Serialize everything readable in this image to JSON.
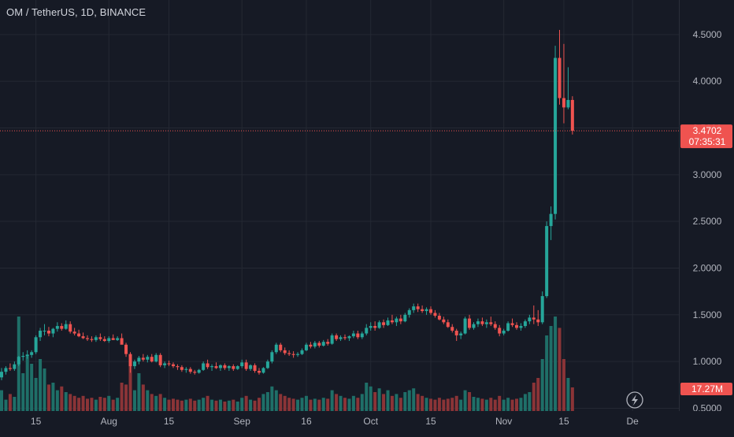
{
  "title": "OM / TetherUS, 1D, BINANCE",
  "chart_data": {
    "type": "candlestick",
    "symbol": "OM / TetherUS",
    "interval": "1D",
    "exchange": "BINANCE",
    "y_ticks": [
      "4.5000",
      "4.0000",
      "3.5000",
      "3.0000",
      "2.5000",
      "2.0000",
      "1.5000",
      "1.0000",
      "0.5000"
    ],
    "y_tick_values": [
      4.5,
      4.0,
      3.5,
      3.0,
      2.5,
      2.0,
      1.5,
      1.0,
      0.5
    ],
    "ylim": [
      0.47,
      4.87
    ],
    "x_ticks": [
      {
        "label": "15",
        "day": 8
      },
      {
        "label": "Aug",
        "day": 25
      },
      {
        "label": "15",
        "day": 39
      },
      {
        "label": "Sep",
        "day": 56
      },
      {
        "label": "16",
        "day": 71
      },
      {
        "label": "Oct",
        "day": 86
      },
      {
        "label": "15",
        "day": 100
      },
      {
        "label": "Nov",
        "day": 117
      },
      {
        "label": "15",
        "day": 131
      },
      {
        "label": "De",
        "day": 147
      }
    ],
    "last_price": "3.4702",
    "last_price_value": 3.4702,
    "countdown": "07:35:31",
    "volume_label": "17.27M",
    "colors": {
      "background": "#161a25",
      "grid": "#242833",
      "up": "#26a69a",
      "down": "#ef5350",
      "text": "#d1d4dc",
      "axis_text": "#b2b5be",
      "volume_up": "#1f6f68",
      "volume_down": "#8b3437",
      "price_line": "#ef5350"
    },
    "candles": [
      [
        0.83,
        0.93,
        0.8,
        0.89
      ],
      [
        0.89,
        0.95,
        0.86,
        0.93
      ],
      [
        0.93,
        0.98,
        0.9,
        0.92
      ],
      [
        0.92,
        1.0,
        0.9,
        0.97
      ],
      [
        0.97,
        1.06,
        0.95,
        1.05
      ],
      [
        1.05,
        1.1,
        1.01,
        1.06
      ],
      [
        1.06,
        1.12,
        1.03,
        1.07
      ],
      [
        1.07,
        1.12,
        1.04,
        1.1
      ],
      [
        1.1,
        1.28,
        1.08,
        1.26
      ],
      [
        1.26,
        1.36,
        1.22,
        1.33
      ],
      [
        1.33,
        1.4,
        1.28,
        1.33
      ],
      [
        1.33,
        1.37,
        1.27,
        1.3
      ],
      [
        1.3,
        1.36,
        1.26,
        1.35
      ],
      [
        1.35,
        1.42,
        1.32,
        1.38
      ],
      [
        1.38,
        1.41,
        1.33,
        1.35
      ],
      [
        1.35,
        1.44,
        1.34,
        1.4
      ],
      [
        1.4,
        1.43,
        1.3,
        1.32
      ],
      [
        1.32,
        1.36,
        1.28,
        1.3
      ],
      [
        1.3,
        1.34,
        1.26,
        1.27
      ],
      [
        1.27,
        1.31,
        1.24,
        1.25
      ],
      [
        1.25,
        1.28,
        1.22,
        1.24
      ],
      [
        1.24,
        1.27,
        1.21,
        1.23
      ],
      [
        1.23,
        1.28,
        1.21,
        1.26
      ],
      [
        1.26,
        1.3,
        1.22,
        1.24
      ],
      [
        1.24,
        1.27,
        1.21,
        1.22
      ],
      [
        1.22,
        1.27,
        1.2,
        1.25
      ],
      [
        1.25,
        1.29,
        1.23,
        1.23
      ],
      [
        1.23,
        1.27,
        1.22,
        1.25
      ],
      [
        1.25,
        1.3,
        1.22,
        1.18
      ],
      [
        1.18,
        1.2,
        1.05,
        1.08
      ],
      [
        1.08,
        1.1,
        0.88,
        0.95
      ],
      [
        0.95,
        1.02,
        0.92,
        1.0
      ],
      [
        1.0,
        1.06,
        0.97,
        1.04
      ],
      [
        1.04,
        1.08,
        1.0,
        1.02
      ],
      [
        1.02,
        1.07,
        0.99,
        1.05
      ],
      [
        1.05,
        1.08,
        0.99,
        1.0
      ],
      [
        1.0,
        1.09,
        0.99,
        1.07
      ],
      [
        1.07,
        1.09,
        0.94,
        0.96
      ],
      [
        0.96,
        1.0,
        0.93,
        0.98
      ],
      [
        0.98,
        1.01,
        0.95,
        0.97
      ],
      [
        0.97,
        0.99,
        0.93,
        0.95
      ],
      [
        0.95,
        0.97,
        0.91,
        0.94
      ],
      [
        0.94,
        0.96,
        0.89,
        0.91
      ],
      [
        0.91,
        0.94,
        0.88,
        0.92
      ],
      [
        0.92,
        0.94,
        0.87,
        0.89
      ],
      [
        0.89,
        0.91,
        0.86,
        0.88
      ],
      [
        0.88,
        0.92,
        0.87,
        0.91
      ],
      [
        0.91,
        1.0,
        0.9,
        0.98
      ],
      [
        0.98,
        1.02,
        0.92,
        0.94
      ],
      [
        0.94,
        0.97,
        0.9,
        0.95
      ],
      [
        0.95,
        0.99,
        0.92,
        0.93
      ],
      [
        0.93,
        0.97,
        0.9,
        0.96
      ],
      [
        0.96,
        0.98,
        0.91,
        0.93
      ],
      [
        0.93,
        0.96,
        0.9,
        0.95
      ],
      [
        0.95,
        0.97,
        0.9,
        0.92
      ],
      [
        0.92,
        0.96,
        0.91,
        0.95
      ],
      [
        0.95,
        1.02,
        0.93,
        0.99
      ],
      [
        0.99,
        1.02,
        0.9,
        0.92
      ],
      [
        0.92,
        0.97,
        0.9,
        0.96
      ],
      [
        0.96,
        0.98,
        0.88,
        0.9
      ],
      [
        0.9,
        0.93,
        0.86,
        0.88
      ],
      [
        0.88,
        0.94,
        0.87,
        0.93
      ],
      [
        0.93,
        1.02,
        0.92,
        1.0
      ],
      [
        1.0,
        1.12,
        0.98,
        1.1
      ],
      [
        1.1,
        1.2,
        1.08,
        1.18
      ],
      [
        1.18,
        1.2,
        1.1,
        1.12
      ],
      [
        1.12,
        1.15,
        1.07,
        1.09
      ],
      [
        1.09,
        1.12,
        1.06,
        1.08
      ],
      [
        1.08,
        1.11,
        1.04,
        1.07
      ],
      [
        1.07,
        1.1,
        1.05,
        1.08
      ],
      [
        1.08,
        1.14,
        1.07,
        1.12
      ],
      [
        1.12,
        1.2,
        1.11,
        1.18
      ],
      [
        1.18,
        1.21,
        1.14,
        1.16
      ],
      [
        1.16,
        1.22,
        1.14,
        1.2
      ],
      [
        1.2,
        1.22,
        1.15,
        1.17
      ],
      [
        1.17,
        1.23,
        1.16,
        1.21
      ],
      [
        1.21,
        1.24,
        1.17,
        1.19
      ],
      [
        1.19,
        1.3,
        1.18,
        1.28
      ],
      [
        1.28,
        1.3,
        1.22,
        1.24
      ],
      [
        1.24,
        1.28,
        1.22,
        1.26
      ],
      [
        1.26,
        1.29,
        1.23,
        1.25
      ],
      [
        1.25,
        1.28,
        1.22,
        1.27
      ],
      [
        1.27,
        1.33,
        1.25,
        1.3
      ],
      [
        1.3,
        1.33,
        1.24,
        1.26
      ],
      [
        1.26,
        1.32,
        1.24,
        1.3
      ],
      [
        1.3,
        1.4,
        1.28,
        1.36
      ],
      [
        1.36,
        1.42,
        1.33,
        1.38
      ],
      [
        1.38,
        1.43,
        1.33,
        1.36
      ],
      [
        1.36,
        1.44,
        1.35,
        1.42
      ],
      [
        1.42,
        1.45,
        1.36,
        1.39
      ],
      [
        1.39,
        1.47,
        1.38,
        1.44
      ],
      [
        1.44,
        1.5,
        1.4,
        1.42
      ],
      [
        1.42,
        1.48,
        1.38,
        1.46
      ],
      [
        1.46,
        1.5,
        1.4,
        1.43
      ],
      [
        1.43,
        1.52,
        1.42,
        1.5
      ],
      [
        1.5,
        1.57,
        1.47,
        1.55
      ],
      [
        1.55,
        1.62,
        1.52,
        1.59
      ],
      [
        1.59,
        1.62,
        1.53,
        1.56
      ],
      [
        1.56,
        1.6,
        1.52,
        1.54
      ],
      [
        1.54,
        1.58,
        1.5,
        1.56
      ],
      [
        1.56,
        1.59,
        1.5,
        1.52
      ],
      [
        1.52,
        1.55,
        1.47,
        1.49
      ],
      [
        1.49,
        1.52,
        1.44,
        1.45
      ],
      [
        1.45,
        1.48,
        1.4,
        1.42
      ],
      [
        1.42,
        1.45,
        1.36,
        1.37
      ],
      [
        1.37,
        1.4,
        1.31,
        1.33
      ],
      [
        1.33,
        1.35,
        1.22,
        1.28
      ],
      [
        1.28,
        1.32,
        1.24,
        1.3
      ],
      [
        1.3,
        1.48,
        1.29,
        1.46
      ],
      [
        1.46,
        1.5,
        1.34,
        1.36
      ],
      [
        1.36,
        1.42,
        1.34,
        1.4
      ],
      [
        1.4,
        1.46,
        1.37,
        1.43
      ],
      [
        1.43,
        1.47,
        1.38,
        1.4
      ],
      [
        1.4,
        1.45,
        1.36,
        1.42
      ],
      [
        1.42,
        1.48,
        1.38,
        1.4
      ],
      [
        1.4,
        1.43,
        1.34,
        1.36
      ],
      [
        1.36,
        1.39,
        1.27,
        1.3
      ],
      [
        1.3,
        1.35,
        1.28,
        1.33
      ],
      [
        1.33,
        1.43,
        1.32,
        1.41
      ],
      [
        1.41,
        1.46,
        1.37,
        1.39
      ],
      [
        1.39,
        1.42,
        1.34,
        1.36
      ],
      [
        1.36,
        1.41,
        1.33,
        1.38
      ],
      [
        1.38,
        1.45,
        1.36,
        1.43
      ],
      [
        1.43,
        1.5,
        1.4,
        1.47
      ],
      [
        1.47,
        1.6,
        1.4,
        1.45
      ],
      [
        1.45,
        1.55,
        1.38,
        1.42
      ],
      [
        1.42,
        1.75,
        1.4,
        1.7
      ],
      [
        1.7,
        2.5,
        1.68,
        2.45
      ],
      [
        2.45,
        2.66,
        2.3,
        2.58
      ],
      [
        2.58,
        4.38,
        2.52,
        4.25
      ],
      [
        4.25,
        4.55,
        3.75,
        3.82
      ],
      [
        3.82,
        4.4,
        3.55,
        3.72
      ],
      [
        3.72,
        4.15,
        3.7,
        3.8
      ],
      [
        3.8,
        3.84,
        3.43,
        3.47
      ]
    ],
    "volumes": [
      0.22,
      0.12,
      0.18,
      0.15,
      1.0,
      0.4,
      0.6,
      0.5,
      0.35,
      0.55,
      0.45,
      0.28,
      0.3,
      0.22,
      0.26,
      0.2,
      0.18,
      0.16,
      0.14,
      0.16,
      0.13,
      0.14,
      0.12,
      0.15,
      0.14,
      0.16,
      0.12,
      0.14,
      0.3,
      0.28,
      0.5,
      0.22,
      0.4,
      0.28,
      0.22,
      0.18,
      0.16,
      0.18,
      0.14,
      0.12,
      0.13,
      0.12,
      0.11,
      0.12,
      0.13,
      0.11,
      0.12,
      0.14,
      0.16,
      0.12,
      0.11,
      0.12,
      0.1,
      0.11,
      0.12,
      0.1,
      0.14,
      0.16,
      0.12,
      0.11,
      0.14,
      0.18,
      0.2,
      0.26,
      0.22,
      0.18,
      0.16,
      0.14,
      0.13,
      0.12,
      0.14,
      0.16,
      0.12,
      0.13,
      0.12,
      0.14,
      0.13,
      0.22,
      0.18,
      0.16,
      0.14,
      0.13,
      0.16,
      0.14,
      0.18,
      0.3,
      0.26,
      0.2,
      0.24,
      0.18,
      0.22,
      0.16,
      0.18,
      0.14,
      0.2,
      0.22,
      0.24,
      0.18,
      0.16,
      0.14,
      0.13,
      0.12,
      0.14,
      0.12,
      0.13,
      0.14,
      0.16,
      0.12,
      0.22,
      0.2,
      0.15,
      0.14,
      0.13,
      0.12,
      0.14,
      0.12,
      0.16,
      0.12,
      0.14,
      0.12,
      0.13,
      0.14,
      0.18,
      0.2,
      0.3,
      0.35,
      0.55,
      0.8,
      0.9,
      1.0,
      0.88,
      0.55,
      0.35,
      0.25
    ]
  }
}
